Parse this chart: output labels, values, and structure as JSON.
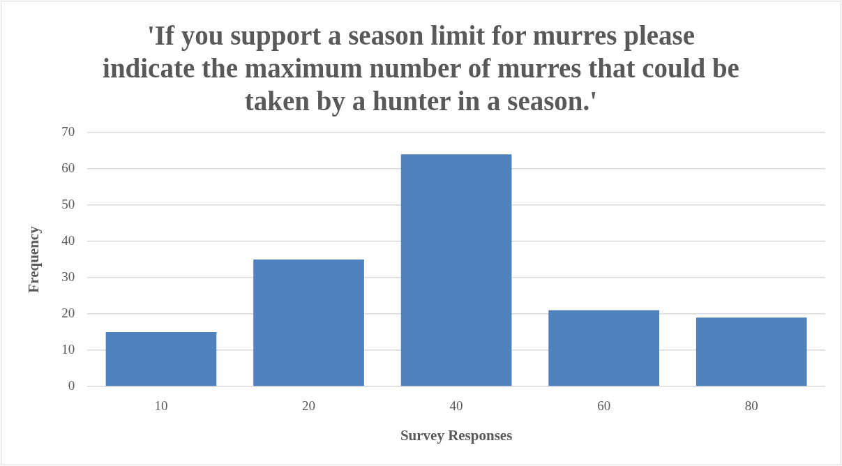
{
  "chart_data": {
    "type": "bar",
    "title": "'If you support a season limit for murres please indicate the maximum number of murres that could be taken by a hunter in a season.'",
    "xlabel": "Survey Responses",
    "ylabel": "Frequency",
    "categories": [
      "10",
      "20",
      "40",
      "60",
      "80"
    ],
    "values": [
      15,
      35,
      64,
      21,
      19
    ],
    "color": "#4f81bd",
    "ylim": [
      0,
      70
    ],
    "yticks": [
      0,
      10,
      20,
      30,
      40,
      50,
      60,
      70
    ],
    "grid": "y"
  }
}
